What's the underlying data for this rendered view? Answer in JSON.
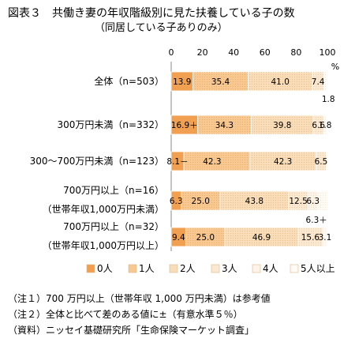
{
  "title": "図表３　共働き妻の年収階級別に見た扶養している子の数",
  "subtitle": "（同居している子ありのみ）",
  "notes": [
    "（注１）700 万円以上（世帯年収 1,000 万円未満）は参考値",
    "（注２）全体と比べて差のある値に±（有意水準５％）",
    "（資料）ニッセイ基礎研究所「生命保険マーケット調査」"
  ],
  "chart_data": {
    "type": "bar",
    "stacked": true,
    "orientation": "horizontal",
    "xlim": [
      0,
      100
    ],
    "xticks": [
      "0",
      "20",
      "40",
      "60",
      "80",
      "100"
    ],
    "unit": "%",
    "legend_position": "bottom",
    "categories": [
      [
        "全体（n=503）"
      ],
      [
        "300万円未満（n=332）"
      ],
      [
        "300〜700万円未満（n=123）"
      ],
      [
        "700万円以上（n=16）",
        "（世帯年収1,000万円未満）"
      ],
      [
        "700万円以上（n=32）",
        "（世帯年収1,000万円以上）"
      ]
    ],
    "series": [
      {
        "name": "0人",
        "color": "#f0a050",
        "values": [
          13.9,
          16.9,
          8.1,
          6.3,
          9.4
        ],
        "labels": [
          "13.9",
          "16.9＋",
          "8.1－",
          "6.3",
          "9.4"
        ]
      },
      {
        "name": "1人",
        "color": "#f8c890",
        "values": [
          35.4,
          34.3,
          42.3,
          25.0,
          25.0
        ],
        "labels": [
          "35.4",
          "34.3",
          "42.3",
          "25.0",
          "25.0"
        ]
      },
      {
        "name": "2人",
        "color": "#f8ddb8",
        "values": [
          41.0,
          39.8,
          42.3,
          43.8,
          46.9
        ],
        "labels": [
          "41.0",
          "39.8",
          "42.3",
          "43.8",
          "46.9"
        ]
      },
      {
        "name": "3人",
        "color": "#fbe8d0",
        "values": [
          7.4,
          6.6,
          6.5,
          12.5,
          15.6
        ],
        "labels": [
          "7.4",
          "6.6",
          "6.5",
          "12.5",
          "15.6"
        ]
      },
      {
        "name": "4人",
        "color": "#fdf3e6",
        "values": [
          0,
          0,
          0,
          6.3,
          0
        ],
        "labels": [
          "",
          "",
          "",
          "6.3",
          ""
        ]
      },
      {
        "name": "5人以上",
        "color": "#fffaf4",
        "values": [
          1.8,
          1.8,
          0,
          6.3,
          3.1
        ],
        "labels": [
          "1.8",
          "1.8",
          "",
          "6.3＋",
          "3.1"
        ]
      }
    ]
  }
}
